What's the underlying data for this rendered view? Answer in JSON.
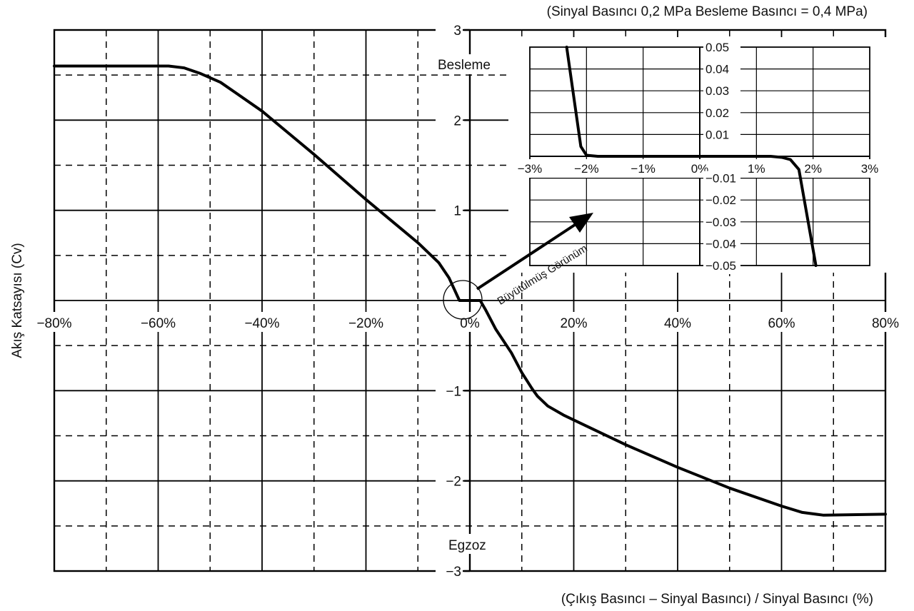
{
  "chart_data": [
    {
      "type": "line",
      "title": "(Sinyal Basıncı 0,2 MPa Besleme Basıncı = 0,4 MPa)",
      "xlabel": "(Çıkış Basıncı – Sinyal Basıncı) / Sinyal Basıncı (%)",
      "ylabel": "Akış Katsayısı (Cv)",
      "xlim": [
        -80,
        80
      ],
      "ylim": [
        -3,
        3
      ],
      "x_ticks": [
        -80,
        -60,
        -40,
        -20,
        0,
        20,
        40,
        60,
        80
      ],
      "x_tick_labels": [
        "−80%",
        "−60%",
        "−40%",
        "−20%",
        "0%",
        "20%",
        "40%",
        "60%",
        "80%"
      ],
      "y_ticks": [
        -3,
        -2,
        -1,
        1,
        2,
        3
      ],
      "y_tick_labels": [
        "−3",
        "−2",
        "−1",
        "1",
        "2",
        "3"
      ],
      "grid": "solid at major ticks, dashed at midpoints",
      "annotations": [
        "Besleme",
        "Egzoz",
        "Büyütülmüş Görünüm"
      ],
      "series": [
        {
          "points": [
            [
              -80,
              2.6
            ],
            [
              -58,
              2.6
            ],
            [
              -55,
              2.58
            ],
            [
              -52,
              2.52
            ],
            [
              -48,
              2.42
            ],
            [
              -45,
              2.3
            ],
            [
              -40,
              2.1
            ],
            [
              -35,
              1.86
            ],
            [
              -30,
              1.62
            ],
            [
              -25,
              1.37
            ],
            [
              -20,
              1.12
            ],
            [
              -15,
              0.88
            ],
            [
              -10,
              0.64
            ],
            [
              -6,
              0.42
            ],
            [
              -4,
              0.25
            ],
            [
              -2,
              0.0
            ],
            [
              2,
              0.0
            ],
            [
              3,
              -0.1
            ],
            [
              5,
              -0.32
            ],
            [
              8,
              -0.58
            ],
            [
              10,
              -0.8
            ],
            [
              12,
              -0.98
            ],
            [
              13,
              -1.06
            ],
            [
              15,
              -1.17
            ],
            [
              18,
              -1.27
            ],
            [
              22,
              -1.38
            ],
            [
              30,
              -1.6
            ],
            [
              40,
              -1.85
            ],
            [
              50,
              -2.08
            ],
            [
              60,
              -2.28
            ],
            [
              64,
              -2.35
            ],
            [
              68,
              -2.38
            ],
            [
              80,
              -2.37
            ]
          ]
        }
      ]
    },
    {
      "type": "line",
      "title": "",
      "xlim": [
        -3,
        3
      ],
      "ylim": [
        -0.05,
        0.05
      ],
      "x_ticks": [
        -3,
        -2,
        -1,
        0,
        1,
        2,
        3
      ],
      "x_tick_labels": [
        "−3%",
        "−2%",
        "−1%",
        "0%",
        "1%",
        "2%",
        "3%"
      ],
      "y_ticks": [
        -0.05,
        -0.04,
        -0.03,
        -0.02,
        -0.01,
        0.01,
        0.02,
        0.03,
        0.04,
        0.05
      ],
      "y_tick_labels": [
        "−0.05",
        "−0.04",
        "−0.03",
        "−0.02",
        "−0.01",
        "0.01",
        "0.02",
        "0.03",
        "0.04",
        "0.05"
      ],
      "grid": "solid",
      "series": [
        {
          "points": [
            [
              -2.35,
              0.05
            ],
            [
              -2.1,
              0.0045
            ],
            [
              -2.0,
              0.0005
            ],
            [
              -1.8,
              0.0
            ],
            [
              1.25,
              0.0
            ],
            [
              1.45,
              -0.0005
            ],
            [
              1.6,
              -0.0015
            ],
            [
              1.75,
              -0.006
            ],
            [
              2.05,
              -0.05
            ]
          ]
        }
      ]
    }
  ]
}
